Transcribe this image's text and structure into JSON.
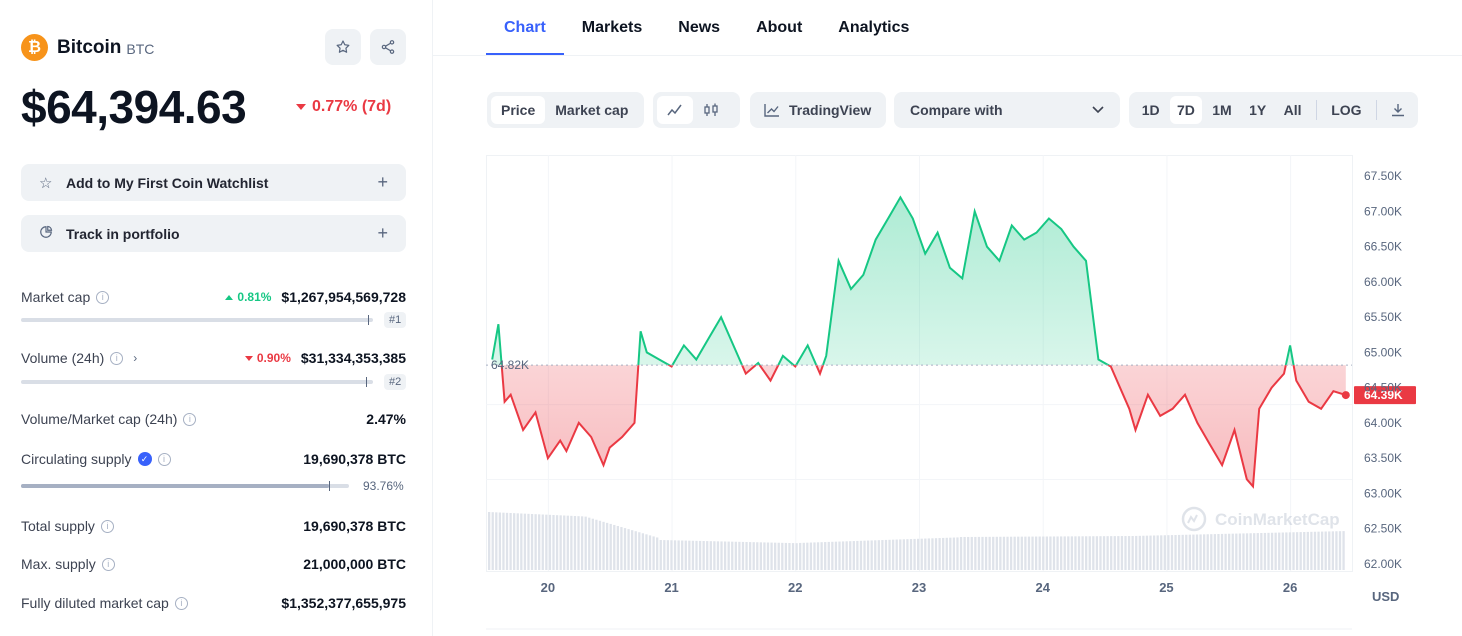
{
  "coin": {
    "name": "Bitcoin",
    "symbol": "BTC",
    "logo_glyph": "₿",
    "price": "$64,394.63",
    "change": "0.77% (7d)"
  },
  "actions": {
    "watchlist_label": "Add to My First Coin Watchlist",
    "portfolio_label": "Track in portfolio"
  },
  "stats": {
    "market_cap": {
      "label": "Market cap",
      "change": "0.81%",
      "value": "$1,267,954,569,728",
      "rank": "#1"
    },
    "volume": {
      "label": "Volume (24h)",
      "change": "0.90%",
      "value": "$31,334,353,385",
      "rank": "#2"
    },
    "vol_mcap": {
      "label": "Volume/Market cap (24h)",
      "value": "2.47%"
    },
    "circulating": {
      "label": "Circulating supply",
      "value": "19,690,378 BTC",
      "percent": "93.76%",
      "fraction": 0.9376
    },
    "total_supply": {
      "label": "Total supply",
      "value": "19,690,378 BTC"
    },
    "max_supply": {
      "label": "Max. supply",
      "value": "21,000,000 BTC"
    },
    "fdmc": {
      "label": "Fully diluted market cap",
      "value": "$1,352,377,655,975"
    }
  },
  "tabs": [
    "Chart",
    "Markets",
    "News",
    "About",
    "Analytics"
  ],
  "toolbar": {
    "price": "Price",
    "market_cap": "Market cap",
    "tradingview": "TradingView",
    "compare": "Compare with",
    "ranges": [
      "1D",
      "7D",
      "1M",
      "1Y",
      "All"
    ],
    "log": "LOG"
  },
  "colors": {
    "up": "#16c784",
    "down": "#ea3943",
    "accent": "#3861fb"
  },
  "chart_data": {
    "type": "area",
    "baseline": 64820,
    "baseline_label": "64.82K",
    "current_label": "64.39K",
    "current": 64394.63,
    "ylim": [
      61900,
      67800
    ],
    "yticks": [
      "67.50K",
      "67.00K",
      "66.50K",
      "66.00K",
      "65.50K",
      "65.00K",
      "64.50K",
      "64.00K",
      "63.50K",
      "63.00K",
      "62.50K",
      "62.00K"
    ],
    "ytick_values": [
      67500,
      67000,
      66500,
      66000,
      65500,
      65000,
      64500,
      64000,
      63500,
      63000,
      62500,
      62000
    ],
    "xticks": [
      "20",
      "21",
      "22",
      "23",
      "24",
      "25",
      "26"
    ],
    "xtick_positions": [
      20,
      21,
      22,
      23,
      24,
      25,
      26
    ],
    "xlim": [
      19.5,
      26.5
    ],
    "unit": "USD",
    "watermark": "CoinMarketCap",
    "x": [
      19.55,
      19.6,
      19.65,
      19.7,
      19.8,
      19.9,
      20.0,
      20.1,
      20.15,
      20.25,
      20.35,
      20.45,
      20.5,
      20.6,
      20.7,
      20.75,
      20.8,
      20.9,
      21.0,
      21.1,
      21.2,
      21.3,
      21.4,
      21.5,
      21.6,
      21.7,
      21.8,
      21.9,
      22.0,
      22.1,
      22.2,
      22.25,
      22.35,
      22.45,
      22.55,
      22.65,
      22.75,
      22.85,
      22.95,
      23.05,
      23.15,
      23.25,
      23.35,
      23.45,
      23.55,
      23.65,
      23.75,
      23.85,
      23.95,
      24.05,
      24.15,
      24.25,
      24.35,
      24.45,
      24.55,
      24.65,
      24.7,
      24.75,
      24.85,
      24.95,
      25.05,
      25.15,
      25.25,
      25.35,
      25.45,
      25.55,
      25.65,
      25.7,
      25.75,
      25.85,
      25.95,
      26.0,
      26.05,
      26.15,
      26.25,
      26.35,
      26.45
    ],
    "y": [
      64900,
      65400,
      64300,
      64400,
      63900,
      64150,
      63500,
      63750,
      63600,
      64000,
      63800,
      63400,
      63650,
      63800,
      64000,
      65300,
      65000,
      64900,
      64800,
      65100,
      64900,
      65200,
      65500,
      65100,
      64700,
      64850,
      64600,
      64950,
      64800,
      65100,
      64700,
      64950,
      66300,
      65900,
      66100,
      66600,
      66900,
      67200,
      66900,
      66400,
      66700,
      66200,
      66050,
      67000,
      66500,
      66300,
      66800,
      66600,
      66700,
      66900,
      66750,
      66500,
      66300,
      64900,
      64800,
      64400,
      64200,
      63900,
      64400,
      64100,
      64200,
      64400,
      64000,
      63700,
      63400,
      63900,
      63200,
      63100,
      64200,
      64500,
      64700,
      65100,
      64600,
      64300,
      64200,
      64450,
      64394.63
    ],
    "volume_note": "volume bars shown without values"
  }
}
